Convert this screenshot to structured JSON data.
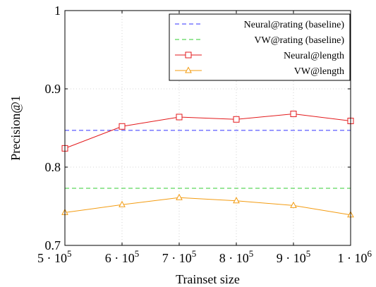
{
  "chart_data": {
    "type": "line",
    "xlabel": "Trainset size",
    "ylabel": "Precision@1",
    "x": [
      500000,
      600000,
      700000,
      800000,
      900000,
      1000000
    ],
    "x_tick_labels": [
      {
        "base": "5 · 10",
        "exp": "5"
      },
      {
        "base": "6 · 10",
        "exp": "5"
      },
      {
        "base": "7 · 10",
        "exp": "5"
      },
      {
        "base": "8 · 10",
        "exp": "5"
      },
      {
        "base": "9 · 10",
        "exp": "5"
      },
      {
        "base": "1 · 10",
        "exp": "6"
      }
    ],
    "xlim": [
      500000,
      1000000
    ],
    "ylim": [
      0.7,
      1.0
    ],
    "y_ticks": [
      0.7,
      0.8,
      0.9,
      1.0
    ],
    "y_tick_labels": [
      "0.7",
      "0.8",
      "0.9",
      "1"
    ],
    "grid": true,
    "legend_position": "top-right",
    "baselines": [
      {
        "name": "Neural@rating (baseline)",
        "value": 0.847,
        "color": "#3333ff",
        "style": "dashed"
      },
      {
        "name": "VW@rating (baseline)",
        "value": 0.773,
        "color": "#33cc33",
        "style": "dashed"
      }
    ],
    "series": [
      {
        "name": "Neural@length",
        "color": "#e31a1c",
        "marker": "square",
        "values": [
          0.824,
          0.852,
          0.864,
          0.861,
          0.868,
          0.859
        ]
      },
      {
        "name": "VW@length",
        "color": "#f39c12",
        "marker": "triangle",
        "values": [
          0.742,
          0.752,
          0.761,
          0.757,
          0.751,
          0.739
        ]
      }
    ]
  }
}
